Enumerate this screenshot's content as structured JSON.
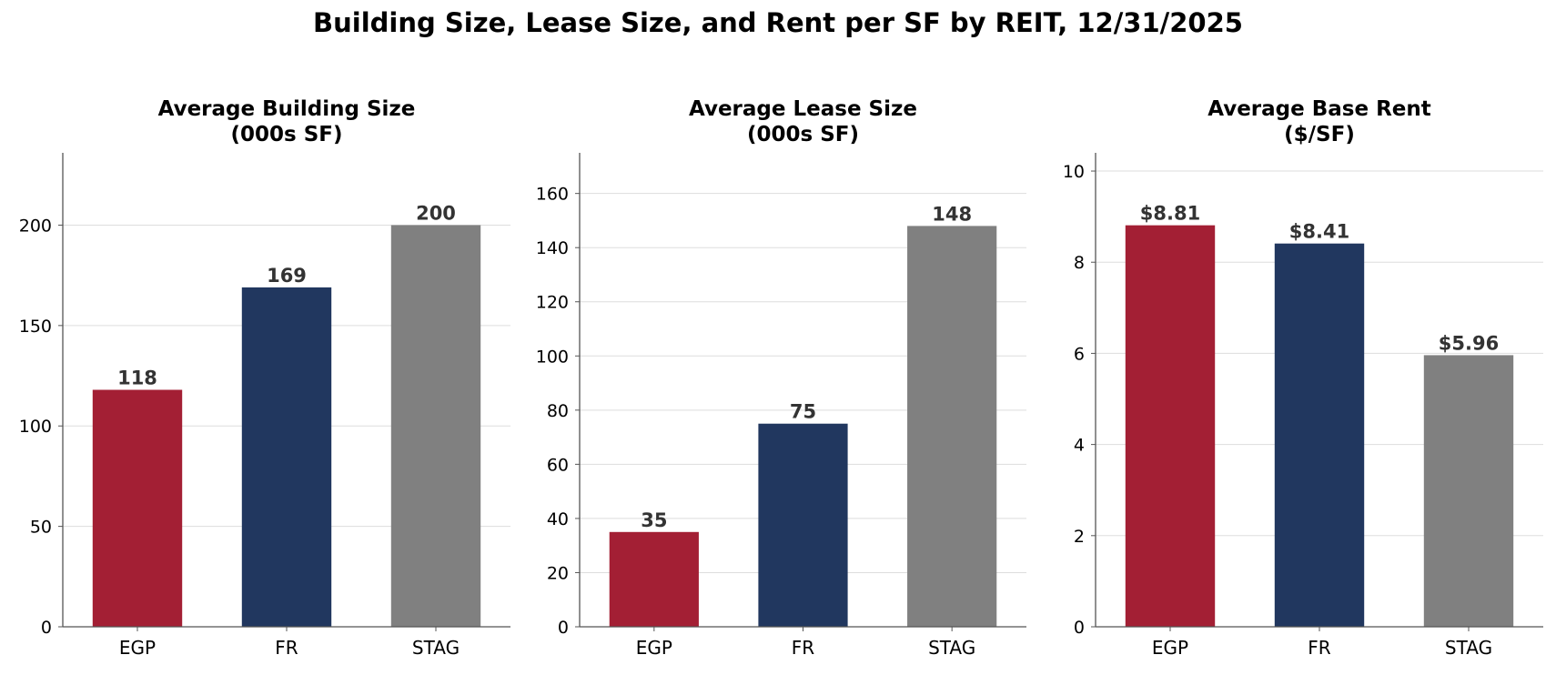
{
  "title": "Building Size, Lease Size, and Rent per SF by REIT, 12/31/2025",
  "colors": {
    "EGP": "#a31f34",
    "FR": "#21375f",
    "STAG": "#808080",
    "grid": "#dddddd",
    "axis": "#555555",
    "label": "#333333"
  },
  "chart_data": [
    {
      "type": "bar",
      "title": "Average Building Size\n(000s SF)",
      "categories": [
        "EGP",
        "FR",
        "STAG"
      ],
      "values": [
        118,
        169,
        200
      ],
      "value_labels": [
        "118",
        "169",
        "200"
      ],
      "ylim": [
        0,
        236
      ],
      "yticks": [
        0,
        50,
        100,
        150,
        200
      ],
      "ytick_labels": [
        "0",
        "50",
        "100",
        "150",
        "200"
      ],
      "grid": true
    },
    {
      "type": "bar",
      "title": "Average Lease Size\n(000s SF)",
      "categories": [
        "EGP",
        "FR",
        "STAG"
      ],
      "values": [
        35,
        75,
        148
      ],
      "value_labels": [
        "35",
        "75",
        "148"
      ],
      "ylim": [
        0,
        175
      ],
      "yticks": [
        0,
        20,
        40,
        60,
        80,
        100,
        120,
        140,
        160
      ],
      "ytick_labels": [
        "0",
        "20",
        "40",
        "60",
        "80",
        "100",
        "120",
        "140",
        "160"
      ],
      "grid": true
    },
    {
      "type": "bar",
      "title": "Average Base Rent\n($/SF)",
      "categories": [
        "EGP",
        "FR",
        "STAG"
      ],
      "values": [
        8.81,
        8.41,
        5.96
      ],
      "value_labels": [
        "$8.81",
        "$8.41",
        "$5.96"
      ],
      "ylim": [
        0,
        10.4
      ],
      "yticks": [
        0,
        2,
        4,
        6,
        8,
        10
      ],
      "ytick_labels": [
        "0",
        "2",
        "4",
        "6",
        "8",
        "10"
      ],
      "grid": true
    }
  ]
}
